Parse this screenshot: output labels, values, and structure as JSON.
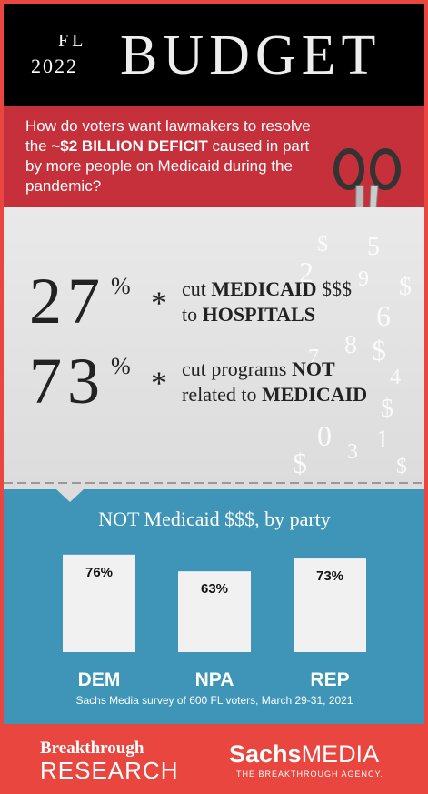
{
  "header": {
    "state": "FL",
    "year": "2022",
    "title": "BUDGET"
  },
  "question": {
    "before": "How do voters want lawmakers to resolve the ",
    "highlight": "~$2 BILLION DEFICIT",
    "after": " caused in part by more people on Medicaid during the pandemic?"
  },
  "results": [
    {
      "value": 27,
      "unit": "%",
      "bullet": "*",
      "line1": [
        {
          "text": "cut "
        },
        {
          "text": "MEDICAID",
          "bold": true
        },
        {
          "text": " $$$"
        }
      ],
      "line2": [
        {
          "text": "to "
        },
        {
          "text": "HOSPITALS",
          "bold": true
        }
      ]
    },
    {
      "value": 73,
      "unit": "%",
      "bullet": "*",
      "line1": [
        {
          "text": "cut programs "
        },
        {
          "text": "NOT",
          "bold": true
        }
      ],
      "line2": [
        {
          "text": "related to "
        },
        {
          "text": "MEDICAID",
          "bold": true
        }
      ]
    }
  ],
  "glyphs": [
    "$",
    "5",
    "2",
    "9",
    "$",
    "6",
    "7",
    "8",
    "$",
    "4",
    "$",
    "0",
    "3",
    "1",
    "$",
    "$"
  ],
  "chart_data": {
    "type": "bar",
    "title": "NOT Medicaid $$$, by party",
    "categories": [
      "DEM",
      "NPA",
      "REP"
    ],
    "values": [
      76,
      63,
      73
    ],
    "value_labels": [
      "76%",
      "63%",
      "73%"
    ],
    "color": "#f1f1f1"
  },
  "source": "Sachs Media survey of 600 FL voters, March 29-31, 2021",
  "footer": {
    "left1": "Breakthrough",
    "left2": "RESEARCH",
    "right1": "Sachs",
    "right2": "MEDIA",
    "tagline": "THE BREAKTHROUGH AGENCY."
  }
}
